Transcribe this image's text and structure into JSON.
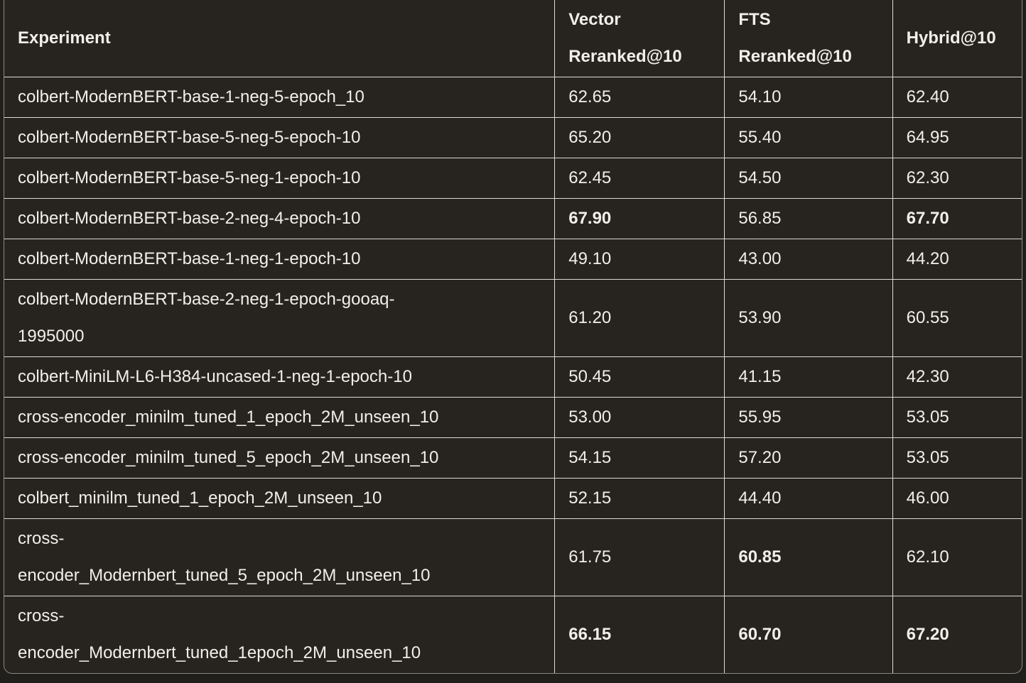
{
  "table": {
    "columns": [
      {
        "label": "Experiment"
      },
      {
        "label": "Vector Reranked@10"
      },
      {
        "label": "FTS Reranked@10"
      },
      {
        "label": "Hybrid@10"
      }
    ],
    "rows": [
      {
        "cells": [
          "colbert-ModernBERT-base-1-neg-5-epoch_10",
          "62.65",
          "54.10",
          "62.40"
        ],
        "bold": [
          false,
          false,
          false,
          false
        ]
      },
      {
        "cells": [
          "colbert-ModernBERT-base-5-neg-5-epoch-10",
          "65.20",
          "55.40",
          "64.95"
        ],
        "bold": [
          false,
          false,
          false,
          false
        ]
      },
      {
        "cells": [
          "colbert-ModernBERT-base-5-neg-1-epoch-10",
          "62.45",
          "54.50",
          "62.30"
        ],
        "bold": [
          false,
          false,
          false,
          false
        ]
      },
      {
        "cells": [
          "colbert-ModernBERT-base-2-neg-4-epoch-10",
          "67.90",
          "56.85",
          "67.70"
        ],
        "bold": [
          false,
          true,
          false,
          true
        ]
      },
      {
        "cells": [
          "colbert-ModernBERT-base-1-neg-1-epoch-10",
          "49.10",
          "43.00",
          "44.20"
        ],
        "bold": [
          false,
          false,
          false,
          false
        ]
      },
      {
        "cells": [
          "colbert-ModernBERT-base-2-neg-1-epoch-gooaq-1995000",
          "61.20",
          "53.90",
          "60.55"
        ],
        "bold": [
          false,
          false,
          false,
          false
        ]
      },
      {
        "cells": [
          "colbert-MiniLM-L6-H384-uncased-1-neg-1-epoch-10",
          "50.45",
          "41.15",
          "42.30"
        ],
        "bold": [
          false,
          false,
          false,
          false
        ]
      },
      {
        "cells": [
          "cross-encoder_minilm_tuned_1_epoch_2M_unseen_10",
          "53.00",
          "55.95",
          "53.05"
        ],
        "bold": [
          false,
          false,
          false,
          false
        ]
      },
      {
        "cells": [
          "cross-encoder_minilm_tuned_5_epoch_2M_unseen_10",
          "54.15",
          "57.20",
          "53.05"
        ],
        "bold": [
          false,
          false,
          false,
          false
        ]
      },
      {
        "cells": [
          "colbert_minilm_tuned_1_epoch_2M_unseen_10",
          "52.15",
          "44.40",
          "46.00"
        ],
        "bold": [
          false,
          false,
          false,
          false
        ]
      },
      {
        "cells": [
          "cross-encoder_Modernbert_tuned_5_epoch_2M_unseen_10",
          "61.75",
          "60.85",
          "62.10"
        ],
        "bold": [
          false,
          false,
          true,
          false
        ]
      },
      {
        "cells": [
          "cross-encoder_Modernbert_tuned_1epoch_2M_unseen_10",
          "66.15",
          "60.70",
          "67.20"
        ],
        "bold": [
          false,
          true,
          true,
          true
        ]
      }
    ]
  },
  "colors": {
    "cell_background": "#272420",
    "page_background": "#211f1c",
    "text": "#f1efe9",
    "grid_line": "#dcdad3",
    "outer_border": "#8a8781"
  }
}
